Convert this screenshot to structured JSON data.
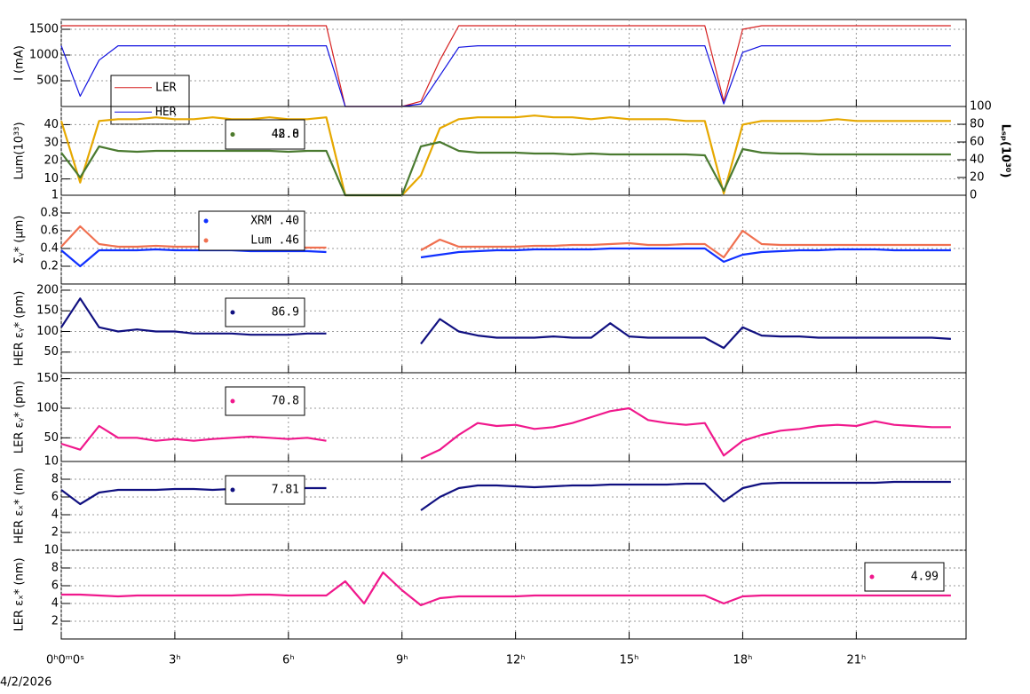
{
  "chart_data": [
    {
      "type": "line",
      "ylabel": "I (mA)",
      "xlim": [
        0,
        23.9
      ],
      "ylim": [
        0,
        1690
      ],
      "yticks": [
        500,
        1000,
        1500
      ],
      "grid": true,
      "x": [
        0,
        0.5,
        1,
        1.5,
        2,
        2.5,
        3,
        3.5,
        4,
        4.5,
        5,
        5.5,
        6,
        6.5,
        7,
        7.5,
        8,
        8.5,
        9,
        9.5,
        10,
        10.5,
        11,
        11.5,
        12,
        12.5,
        13,
        13.5,
        14,
        14.5,
        15,
        15.5,
        16,
        16.5,
        17,
        17.5,
        18,
        18.5,
        19,
        19.5,
        20,
        20.5,
        21,
        21.5,
        22,
        22.5,
        23,
        23.5
      ],
      "series": [
        {
          "name": "LER",
          "color": "#d62020",
          "values": [
            1570,
            1570,
            1570,
            1570,
            1570,
            1570,
            1570,
            1570,
            1570,
            1570,
            1570,
            1570,
            1570,
            1570,
            1570,
            0,
            0,
            0,
            0,
            100,
            900,
            1570,
            1570,
            1570,
            1570,
            1570,
            1570,
            1570,
            1570,
            1570,
            1570,
            1570,
            1570,
            1570,
            1570,
            100,
            1500,
            1570,
            1570,
            1570,
            1570,
            1570,
            1570,
            1570,
            1570,
            1570,
            1570,
            1570
          ]
        },
        {
          "name": "HER",
          "color": "#1010e0",
          "values": [
            1180,
            200,
            900,
            1180,
            1180,
            1180,
            1180,
            1180,
            1180,
            1180,
            1180,
            1180,
            1180,
            1180,
            1180,
            0,
            0,
            0,
            0,
            50,
            600,
            1150,
            1180,
            1180,
            1180,
            1180,
            1180,
            1180,
            1180,
            1180,
            1180,
            1180,
            1180,
            1180,
            1180,
            50,
            1050,
            1180,
            1180,
            1180,
            1180,
            1180,
            1180,
            1180,
            1180,
            1180,
            1180,
            1180
          ]
        }
      ]
    },
    {
      "type": "line",
      "ylabel": "Lum(10³³)",
      "y2label": "Lₛₚ(10³⁰)",
      "xlim": [
        0,
        23.9
      ],
      "ylim": [
        1,
        50
      ],
      "yticks": [
        1,
        10,
        20,
        30,
        40
      ],
      "y2lim": [
        0,
        100
      ],
      "y2ticks": [
        0,
        20,
        40,
        60,
        80,
        100
      ],
      "grid": true,
      "x": [
        0,
        0.5,
        1,
        1.5,
        2,
        2.5,
        3,
        3.5,
        4,
        4.5,
        5,
        5.5,
        6,
        6.5,
        7,
        7.5,
        8,
        8.5,
        9,
        9.5,
        10,
        10.5,
        11,
        11.5,
        12,
        12.5,
        13,
        13.5,
        14,
        14.5,
        15,
        15.5,
        16,
        16.5,
        17,
        17.5,
        18,
        18.5,
        19,
        19.5,
        20,
        20.5,
        21,
        21.5,
        22,
        22.5,
        23,
        23.5
      ],
      "series": [
        {
          "name": "42.8",
          "color": "#e6a800",
          "values": [
            42,
            8,
            42,
            43,
            43,
            44,
            43,
            43,
            44,
            43,
            43,
            44,
            43,
            43,
            44,
            1,
            1,
            1,
            1,
            12,
            38,
            43,
            44,
            44,
            44,
            45,
            44,
            44,
            43,
            44,
            43,
            43,
            43,
            42,
            42,
            2,
            40,
            42,
            42,
            42,
            42,
            43,
            42,
            42,
            42,
            42,
            42,
            42
          ]
        },
        {
          "name": "48.0",
          "color": "#4a7a30",
          "axis": "y2",
          "values": [
            48,
            20,
            55,
            50,
            49,
            50,
            50,
            50,
            50,
            50,
            50,
            50,
            49,
            50,
            50,
            0,
            0,
            0,
            0,
            55,
            60,
            50,
            48,
            48,
            48,
            47,
            47,
            46,
            47,
            46,
            46,
            46,
            46,
            46,
            45,
            5,
            52,
            48,
            47,
            47,
            46,
            46,
            46,
            46,
            46,
            46,
            46,
            46
          ]
        }
      ]
    },
    {
      "type": "line",
      "ylabel": "Σᵧ* (μm)",
      "xlim": [
        0,
        23.9
      ],
      "ylim": [
        0,
        1
      ],
      "yticks": [
        0.2,
        0.4,
        0.6,
        0.8
      ],
      "grid": true,
      "x": [
        0,
        0.5,
        1,
        1.5,
        2,
        2.5,
        3,
        3.5,
        4,
        4.5,
        5,
        5.5,
        6,
        6.5,
        7,
        7.5,
        8,
        8.5,
        9,
        9.5,
        10,
        10.5,
        11,
        11.5,
        12,
        12.5,
        13,
        13.5,
        14,
        14.5,
        15,
        15.5,
        16,
        16.5,
        17,
        17.5,
        18,
        18.5,
        19,
        19.5,
        20,
        20.5,
        21,
        21.5,
        22,
        22.5,
        23,
        23.5
      ],
      "series": [
        {
          "name": "XRM  .40",
          "color": "#1030ff",
          "values": [
            0.38,
            0.2,
            0.38,
            0.38,
            0.38,
            0.39,
            0.38,
            0.38,
            0.38,
            0.38,
            0.37,
            0.37,
            0.37,
            0.37,
            0.36,
            null,
            null,
            null,
            null,
            0.3,
            0.33,
            0.36,
            0.37,
            0.38,
            0.38,
            0.39,
            0.39,
            0.39,
            0.39,
            0.4,
            0.4,
            0.4,
            0.4,
            0.4,
            0.4,
            0.25,
            0.33,
            0.36,
            0.37,
            0.38,
            0.38,
            0.39,
            0.39,
            0.39,
            0.38,
            0.38,
            0.38,
            0.38
          ]
        },
        {
          "name": "Lum  .46",
          "color": "#f07050",
          "values": [
            0.42,
            0.65,
            0.45,
            0.42,
            0.42,
            0.43,
            0.42,
            0.42,
            0.42,
            0.42,
            0.41,
            0.41,
            0.41,
            0.41,
            0.41,
            null,
            null,
            null,
            null,
            0.38,
            0.5,
            0.42,
            0.42,
            0.42,
            0.42,
            0.43,
            0.43,
            0.44,
            0.44,
            0.45,
            0.46,
            0.44,
            0.44,
            0.45,
            0.45,
            0.3,
            0.6,
            0.45,
            0.44,
            0.44,
            0.44,
            0.44,
            0.44,
            0.44,
            0.44,
            0.44,
            0.44,
            0.44
          ]
        }
      ]
    },
    {
      "type": "line",
      "ylabel": "HER εᵧ* (pm)",
      "xlim": [
        0,
        23.9
      ],
      "ylim": [
        0,
        215
      ],
      "yticks": [
        50,
        100,
        150,
        200
      ],
      "grid": true,
      "x": [
        0,
        0.5,
        1,
        1.5,
        2,
        2.5,
        3,
        3.5,
        4,
        4.5,
        5,
        5.5,
        6,
        6.5,
        7,
        7.5,
        8,
        8.5,
        9,
        9.5,
        10,
        10.5,
        11,
        11.5,
        12,
        12.5,
        13,
        13.5,
        14,
        14.5,
        15,
        15.5,
        16,
        16.5,
        17,
        17.5,
        18,
        18.5,
        19,
        19.5,
        20,
        20.5,
        21,
        21.5,
        22,
        22.5,
        23,
        23.5
      ],
      "series": [
        {
          "name": "86.9",
          "color": "#101080",
          "values": [
            110,
            180,
            110,
            100,
            105,
            100,
            100,
            95,
            95,
            95,
            92,
            92,
            92,
            95,
            95,
            null,
            null,
            null,
            null,
            70,
            130,
            100,
            90,
            85,
            85,
            85,
            88,
            85,
            85,
            120,
            88,
            85,
            85,
            85,
            85,
            60,
            110,
            90,
            88,
            88,
            85,
            85,
            85,
            85,
            85,
            85,
            85,
            82
          ]
        }
      ]
    },
    {
      "type": "line",
      "ylabel": "LER εᵧ* (pm)",
      "xlim": [
        0,
        23.9
      ],
      "ylim": [
        10,
        160
      ],
      "yticks": [
        10,
        50,
        100,
        150
      ],
      "grid": true,
      "x": [
        0,
        0.5,
        1,
        1.5,
        2,
        2.5,
        3,
        3.5,
        4,
        4.5,
        5,
        5.5,
        6,
        6.5,
        7,
        7.5,
        8,
        8.5,
        9,
        9.5,
        10,
        10.5,
        11,
        11.5,
        12,
        12.5,
        13,
        13.5,
        14,
        14.5,
        15,
        15.5,
        16,
        16.5,
        17,
        17.5,
        18,
        18.5,
        19,
        19.5,
        20,
        20.5,
        21,
        21.5,
        22,
        22.5,
        23,
        23.5
      ],
      "series": [
        {
          "name": "70.8",
          "color": "#f0188c",
          "values": [
            40,
            30,
            70,
            50,
            50,
            45,
            48,
            45,
            48,
            50,
            52,
            50,
            48,
            50,
            45,
            null,
            null,
            null,
            null,
            15,
            30,
            55,
            75,
            70,
            72,
            65,
            68,
            75,
            85,
            95,
            100,
            80,
            75,
            72,
            75,
            20,
            45,
            55,
            62,
            65,
            70,
            72,
            70,
            78,
            72,
            70,
            68,
            68
          ]
        }
      ]
    },
    {
      "type": "line",
      "ylabel": "HER εₓ* (nm)",
      "xlim": [
        0,
        23.9
      ],
      "ylim": [
        0,
        10
      ],
      "yticks": [
        2,
        4,
        6,
        8
      ],
      "grid": true,
      "x": [
        0,
        0.5,
        1,
        1.5,
        2,
        2.5,
        3,
        3.5,
        4,
        4.5,
        5,
        5.5,
        6,
        6.5,
        7,
        7.5,
        8,
        8.5,
        9,
        9.5,
        10,
        10.5,
        11,
        11.5,
        12,
        12.5,
        13,
        13.5,
        14,
        14.5,
        15,
        15.5,
        16,
        16.5,
        17,
        17.5,
        18,
        18.5,
        19,
        19.5,
        20,
        20.5,
        21,
        21.5,
        22,
        22.5,
        23,
        23.5
      ],
      "series": [
        {
          "name": "7.81",
          "color": "#101080",
          "values": [
            6.8,
            5.2,
            6.5,
            6.8,
            6.8,
            6.8,
            6.9,
            6.9,
            6.8,
            6.9,
            6.9,
            7.0,
            7.0,
            7.0,
            7.0,
            null,
            null,
            null,
            null,
            4.5,
            6.0,
            7.0,
            7.3,
            7.3,
            7.2,
            7.1,
            7.2,
            7.3,
            7.3,
            7.4,
            7.4,
            7.4,
            7.4,
            7.5,
            7.5,
            5.5,
            7.0,
            7.5,
            7.6,
            7.6,
            7.6,
            7.6,
            7.6,
            7.6,
            7.7,
            7.7,
            7.7,
            7.7
          ]
        }
      ]
    },
    {
      "type": "line",
      "ylabel": "LER εₓ* (nm)",
      "date": "4/2/2026",
      "xlim": [
        0,
        23.9
      ],
      "ylim": [
        0,
        10
      ],
      "yticks": [
        2,
        4,
        6,
        8,
        10
      ],
      "grid": true,
      "xticks": [
        {
          "value": 0,
          "label": "0ʰ0ᵐ0ˢ"
        },
        {
          "value": 3,
          "label": "3ʰ"
        },
        {
          "value": 6,
          "label": "6ʰ"
        },
        {
          "value": 9,
          "label": "9ʰ"
        },
        {
          "value": 12,
          "label": "12ʰ"
        },
        {
          "value": 15,
          "label": "15ʰ"
        },
        {
          "value": 18,
          "label": "18ʰ"
        },
        {
          "value": 21,
          "label": "21ʰ"
        }
      ],
      "x": [
        0,
        0.5,
        1,
        1.5,
        2,
        2.5,
        3,
        3.5,
        4,
        4.5,
        5,
        5.5,
        6,
        6.5,
        7,
        7.5,
        8,
        8.5,
        9,
        9.5,
        10,
        10.5,
        11,
        11.5,
        12,
        12.5,
        13,
        13.5,
        14,
        14.5,
        15,
        15.5,
        16,
        16.5,
        17,
        17.5,
        18,
        18.5,
        19,
        19.5,
        20,
        20.5,
        21,
        21.5,
        22,
        22.5,
        23,
        23.5
      ],
      "series": [
        {
          "name": "4.99",
          "color": "#f0188c",
          "values": [
            5.0,
            5.0,
            4.9,
            4.8,
            4.9,
            4.9,
            4.9,
            4.9,
            4.9,
            4.9,
            5.0,
            5.0,
            4.9,
            4.9,
            4.9,
            6.5,
            4.0,
            7.5,
            5.5,
            3.8,
            4.6,
            4.8,
            4.8,
            4.8,
            4.8,
            4.9,
            4.9,
            4.9,
            4.9,
            4.9,
            4.9,
            4.9,
            4.9,
            4.9,
            4.9,
            4.0,
            4.8,
            4.9,
            4.9,
            4.9,
            4.9,
            4.9,
            4.9,
            4.9,
            4.9,
            4.9,
            4.9,
            4.9
          ]
        }
      ]
    }
  ]
}
